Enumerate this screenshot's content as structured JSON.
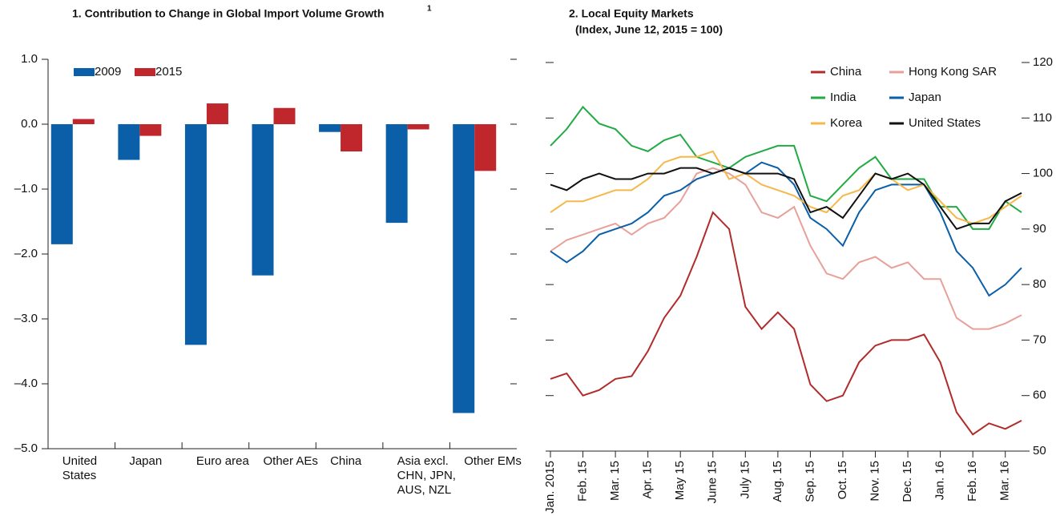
{
  "chart_data": [
    {
      "type": "bar",
      "title": "1. Contribution to Change in Global Import Volume Growth",
      "title_superscript": "1",
      "categories": [
        [
          "United",
          "States"
        ],
        [
          "Japan"
        ],
        [
          "Euro area"
        ],
        [
          "Other AEs"
        ],
        [
          "China"
        ],
        [
          "Asia excl.",
          "CHN, JPN,",
          "AUS, NZL"
        ],
        [
          "Other EMs"
        ]
      ],
      "series": [
        {
          "name": "2009",
          "color": "#0a5fa8",
          "values": [
            -1.85,
            -0.55,
            -3.4,
            -2.33,
            -0.12,
            -1.52,
            -4.45
          ]
        },
        {
          "name": "2015",
          "color": "#c0272d",
          "values": [
            0.08,
            -0.18,
            0.32,
            0.25,
            -0.42,
            -0.08,
            -0.72
          ]
        }
      ],
      "ylim": [
        -5,
        1
      ],
      "yticks": [
        {
          "value": 1,
          "label": "1.0"
        },
        {
          "value": 0,
          "label": "0.0"
        },
        {
          "value": -1,
          "label": "–1.0"
        },
        {
          "value": -2,
          "label": "–2.0"
        },
        {
          "value": -3,
          "label": "–3.0"
        },
        {
          "value": -4,
          "label": "–4.0"
        },
        {
          "value": -5,
          "label": "–5.0"
        }
      ],
      "legend": "top-left"
    },
    {
      "type": "line",
      "title": "2. Local Equity Markets",
      "subtitle": "(Index, June 12, 2015 = 100)",
      "x": [
        0,
        0.5,
        1,
        1.5,
        2,
        2.5,
        3,
        3.5,
        4,
        4.5,
        5,
        5.5,
        6,
        6.5,
        7,
        7.5,
        8,
        8.5,
        9,
        9.5,
        10,
        10.5,
        11,
        11.5,
        12,
        12.5,
        13,
        13.5,
        14,
        14.5
      ],
      "series": [
        {
          "name": "China",
          "color": "#b22b2b",
          "values": [
            63,
            64,
            60,
            61,
            63,
            63.5,
            68,
            74,
            78,
            85,
            93,
            90,
            76,
            72,
            75,
            72,
            62,
            59,
            60,
            66,
            69,
            70,
            70,
            71,
            66,
            57,
            53,
            55,
            54,
            55.5
          ]
        },
        {
          "name": "Hong Kong SAR",
          "color": "#e8a09a",
          "values": [
            86,
            88,
            89,
            90,
            91,
            89,
            91,
            92,
            95,
            100,
            101,
            100,
            98,
            93,
            92,
            94,
            87,
            82,
            81,
            84,
            85,
            83,
            84,
            81,
            81,
            74,
            72,
            72,
            73,
            74.5
          ]
        },
        {
          "name": "India",
          "color": "#22aa44",
          "values": [
            105,
            108,
            112,
            109,
            108,
            105,
            104,
            106,
            107,
            103,
            102,
            101,
            103,
            104,
            105,
            105,
            96,
            95,
            98,
            101,
            103,
            99,
            99,
            99,
            94,
            94,
            90,
            90,
            95,
            93
          ]
        },
        {
          "name": "Japan",
          "color": "#0a5fa8",
          "values": [
            86,
            84,
            86,
            89,
            90,
            91,
            93,
            96,
            97,
            99,
            100,
            101,
            100,
            102,
            101,
            98,
            92,
            90,
            87,
            93,
            97,
            98,
            98,
            98,
            93,
            86,
            83,
            78,
            80,
            83
          ]
        },
        {
          "name": "Korea",
          "color": "#f6b84a",
          "values": [
            93,
            95,
            95,
            96,
            97,
            97,
            99,
            102,
            103,
            103,
            104,
            99,
            100,
            98,
            97,
            96,
            94,
            93,
            96,
            97,
            100,
            99,
            97,
            98,
            95,
            92,
            91,
            92,
            94,
            96
          ]
        },
        {
          "name": "United States",
          "color": "#111111",
          "values": [
            98,
            97,
            99,
            100,
            99,
            99,
            100,
            100,
            101,
            101,
            100,
            101,
            100,
            100,
            100,
            99,
            93,
            94,
            92,
            96,
            100,
            99,
            100,
            98,
            94,
            90,
            91,
            91,
            95,
            96.5
          ]
        }
      ],
      "xlim": [
        0,
        14.5
      ],
      "xticks": [
        {
          "value": 0,
          "label": "Jan. 2015"
        },
        {
          "value": 1,
          "label": "Feb. 15"
        },
        {
          "value": 2,
          "label": "Mar. 15"
        },
        {
          "value": 3,
          "label": "Apr. 15"
        },
        {
          "value": 4,
          "label": "May 15"
        },
        {
          "value": 5,
          "label": "June 15"
        },
        {
          "value": 6,
          "label": "July 15"
        },
        {
          "value": 7,
          "label": "Aug. 15"
        },
        {
          "value": 8,
          "label": "Sep. 15"
        },
        {
          "value": 9,
          "label": "Oct. 15"
        },
        {
          "value": 10,
          "label": "Nov. 15"
        },
        {
          "value": 11,
          "label": "Dec. 15"
        },
        {
          "value": 12,
          "label": "Jan. 16"
        },
        {
          "value": 13,
          "label": "Feb. 16"
        },
        {
          "value": 14,
          "label": "Mar. 16"
        }
      ],
      "ylim": [
        50,
        120
      ],
      "yticks": [
        50,
        60,
        70,
        80,
        90,
        100,
        110,
        120
      ],
      "legend": "top-right"
    }
  ]
}
